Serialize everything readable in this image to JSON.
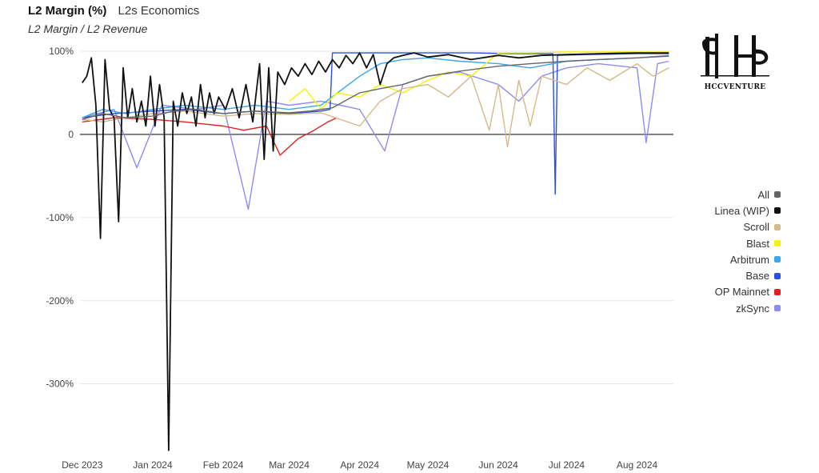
{
  "header": {
    "title": "L2 Margin (%)",
    "section": "L2s Economics",
    "subtitle": "L2 Margin / L2 Revenue"
  },
  "logo": {
    "text": "HCCVENTURE"
  },
  "chart_data": {
    "type": "line",
    "title": "L2 Margin (%)",
    "subtitle": "L2 Margin / L2 Revenue",
    "xlabel": "",
    "ylabel": "",
    "y_unit": "%",
    "ylim": [
      -385,
      100
    ],
    "xlim": [
      "2023-11-30",
      "2024-08-17"
    ],
    "y_ticks": [
      100,
      0,
      -100,
      -200,
      -300
    ],
    "y_tick_labels": [
      "100%",
      "0",
      "-100%",
      "-200%",
      "-300%"
    ],
    "x_ticks": [
      "2023-12-01",
      "2024-01-01",
      "2024-02-01",
      "2024-03-01",
      "2024-04-01",
      "2024-05-01",
      "2024-06-01",
      "2024-07-01",
      "2024-08-01"
    ],
    "x_tick_labels": [
      "Dec 2023",
      "Jan 2024",
      "Feb 2024",
      "Mar 2024",
      "Apr 2024",
      "May 2024",
      "Jun 2024",
      "Jul 2024",
      "Aug 2024"
    ],
    "grid": true,
    "legend_position": "right",
    "series": [
      {
        "name": "All",
        "color": "#666666",
        "points": [
          [
            "2023-12-01",
            18
          ],
          [
            "2023-12-10",
            25
          ],
          [
            "2023-12-20",
            20
          ],
          [
            "2024-01-01",
            22
          ],
          [
            "2024-01-10",
            28
          ],
          [
            "2024-01-20",
            30
          ],
          [
            "2024-02-01",
            25
          ],
          [
            "2024-02-15",
            28
          ],
          [
            "2024-03-01",
            26
          ],
          [
            "2024-03-10",
            28
          ],
          [
            "2024-03-20",
            32
          ],
          [
            "2024-04-01",
            50
          ],
          [
            "2024-04-10",
            55
          ],
          [
            "2024-04-20",
            60
          ],
          [
            "2024-05-01",
            70
          ],
          [
            "2024-05-15",
            76
          ],
          [
            "2024-06-01",
            82
          ],
          [
            "2024-06-15",
            85
          ],
          [
            "2024-07-01",
            88
          ],
          [
            "2024-07-15",
            90
          ],
          [
            "2024-08-01",
            92
          ],
          [
            "2024-08-15",
            94
          ]
        ]
      },
      {
        "name": "Linea (WIP)",
        "color": "#111111",
        "points": [
          [
            "2023-12-01",
            62
          ],
          [
            "2023-12-03",
            70
          ],
          [
            "2023-12-05",
            92
          ],
          [
            "2023-12-07",
            35
          ],
          [
            "2023-12-09",
            -125
          ],
          [
            "2023-12-11",
            90
          ],
          [
            "2023-12-13",
            30
          ],
          [
            "2023-12-15",
            20
          ],
          [
            "2023-12-17",
            -105
          ],
          [
            "2023-12-19",
            80
          ],
          [
            "2023-12-21",
            20
          ],
          [
            "2023-12-23",
            55
          ],
          [
            "2023-12-25",
            15
          ],
          [
            "2023-12-27",
            40
          ],
          [
            "2023-12-29",
            10
          ],
          [
            "2023-12-31",
            70
          ],
          [
            "2024-01-02",
            10
          ],
          [
            "2024-01-04",
            60
          ],
          [
            "2024-01-06",
            20
          ],
          [
            "2024-01-08",
            -380
          ],
          [
            "2024-01-10",
            40
          ],
          [
            "2024-01-12",
            10
          ],
          [
            "2024-01-14",
            50
          ],
          [
            "2024-01-16",
            25
          ],
          [
            "2024-01-18",
            45
          ],
          [
            "2024-01-20",
            10
          ],
          [
            "2024-01-22",
            60
          ],
          [
            "2024-01-24",
            20
          ],
          [
            "2024-01-26",
            50
          ],
          [
            "2024-01-28",
            25
          ],
          [
            "2024-01-30",
            45
          ],
          [
            "2024-02-02",
            30
          ],
          [
            "2024-02-05",
            55
          ],
          [
            "2024-02-08",
            20
          ],
          [
            "2024-02-11",
            60
          ],
          [
            "2024-02-14",
            15
          ],
          [
            "2024-02-17",
            85
          ],
          [
            "2024-02-19",
            -30
          ],
          [
            "2024-02-21",
            80
          ],
          [
            "2024-02-23",
            -20
          ],
          [
            "2024-02-25",
            75
          ],
          [
            "2024-02-28",
            60
          ],
          [
            "2024-03-02",
            80
          ],
          [
            "2024-03-05",
            70
          ],
          [
            "2024-03-08",
            85
          ],
          [
            "2024-03-11",
            72
          ],
          [
            "2024-03-14",
            88
          ],
          [
            "2024-03-17",
            75
          ],
          [
            "2024-03-20",
            90
          ],
          [
            "2024-03-23",
            80
          ],
          [
            "2024-03-26",
            95
          ],
          [
            "2024-03-29",
            85
          ],
          [
            "2024-04-01",
            98
          ],
          [
            "2024-04-04",
            80
          ],
          [
            "2024-04-07",
            96
          ],
          [
            "2024-04-10",
            60
          ],
          [
            "2024-04-13",
            85
          ],
          [
            "2024-04-16",
            92
          ],
          [
            "2024-04-20",
            95
          ],
          [
            "2024-04-25",
            98
          ],
          [
            "2024-05-01",
            93
          ],
          [
            "2024-05-10",
            96
          ],
          [
            "2024-05-20",
            90
          ],
          [
            "2024-06-01",
            95
          ],
          [
            "2024-06-10",
            92
          ],
          [
            "2024-06-20",
            95
          ],
          [
            "2024-07-01",
            96
          ],
          [
            "2024-07-15",
            97
          ],
          [
            "2024-08-01",
            98
          ],
          [
            "2024-08-15",
            98
          ]
        ]
      },
      {
        "name": "Scroll",
        "color": "#d4b98a",
        "points": [
          [
            "2023-12-01",
            18
          ],
          [
            "2023-12-10",
            15
          ],
          [
            "2023-12-20",
            20
          ],
          [
            "2024-01-01",
            25
          ],
          [
            "2024-01-15",
            28
          ],
          [
            "2024-02-01",
            22
          ],
          [
            "2024-02-15",
            25
          ],
          [
            "2024-03-01",
            24
          ],
          [
            "2024-03-15",
            26
          ],
          [
            "2024-04-01",
            10
          ],
          [
            "2024-04-10",
            40
          ],
          [
            "2024-04-20",
            55
          ],
          [
            "2024-05-01",
            60
          ],
          [
            "2024-05-10",
            45
          ],
          [
            "2024-05-20",
            70
          ],
          [
            "2024-05-28",
            5
          ],
          [
            "2024-06-01",
            60
          ],
          [
            "2024-06-05",
            -15
          ],
          [
            "2024-06-10",
            65
          ],
          [
            "2024-06-15",
            10
          ],
          [
            "2024-06-20",
            70
          ],
          [
            "2024-07-01",
            60
          ],
          [
            "2024-07-10",
            80
          ],
          [
            "2024-07-20",
            65
          ],
          [
            "2024-08-01",
            85
          ],
          [
            "2024-08-08",
            70
          ],
          [
            "2024-08-15",
            80
          ]
        ]
      },
      {
        "name": "Blast",
        "color": "#f5f500",
        "points": [
          [
            "2024-03-01",
            40
          ],
          [
            "2024-03-08",
            55
          ],
          [
            "2024-03-15",
            30
          ],
          [
            "2024-03-22",
            50
          ],
          [
            "2024-04-01",
            45
          ],
          [
            "2024-04-10",
            60
          ],
          [
            "2024-04-20",
            50
          ],
          [
            "2024-05-01",
            65
          ],
          [
            "2024-05-10",
            75
          ],
          [
            "2024-05-20",
            70
          ],
          [
            "2024-06-01",
            98
          ],
          [
            "2024-06-15",
            98
          ],
          [
            "2024-07-01",
            99
          ],
          [
            "2024-08-01",
            99
          ],
          [
            "2024-08-15",
            99
          ]
        ]
      },
      {
        "name": "Arbitrum",
        "color": "#3aa7ec",
        "points": [
          [
            "2023-12-01",
            20
          ],
          [
            "2023-12-10",
            30
          ],
          [
            "2023-12-20",
            25
          ],
          [
            "2024-01-01",
            30
          ],
          [
            "2024-01-15",
            35
          ],
          [
            "2024-02-01",
            30
          ],
          [
            "2024-02-15",
            35
          ],
          [
            "2024-03-01",
            30
          ],
          [
            "2024-03-15",
            35
          ],
          [
            "2024-04-01",
            70
          ],
          [
            "2024-04-10",
            85
          ],
          [
            "2024-04-20",
            90
          ],
          [
            "2024-05-01",
            92
          ],
          [
            "2024-05-15",
            88
          ],
          [
            "2024-06-01",
            85
          ],
          [
            "2024-06-15",
            80
          ],
          [
            "2024-07-01",
            88
          ],
          [
            "2024-07-15",
            90
          ],
          [
            "2024-08-01",
            92
          ],
          [
            "2024-08-15",
            95
          ]
        ]
      },
      {
        "name": "Base",
        "color": "#2b4fe0",
        "points": [
          [
            "2023-12-01",
            20
          ],
          [
            "2023-12-15",
            25
          ],
          [
            "2024-01-01",
            28
          ],
          [
            "2024-01-15",
            30
          ],
          [
            "2024-02-01",
            25
          ],
          [
            "2024-02-15",
            28
          ],
          [
            "2024-03-01",
            25
          ],
          [
            "2024-03-15",
            28
          ],
          [
            "2024-03-19",
            30
          ],
          [
            "2024-03-20",
            98
          ],
          [
            "2024-04-10",
            98
          ],
          [
            "2024-05-01",
            98
          ],
          [
            "2024-05-20",
            98
          ],
          [
            "2024-06-10",
            97
          ],
          [
            "2024-06-25",
            97
          ],
          [
            "2024-06-26",
            -72
          ],
          [
            "2024-06-27",
            95
          ],
          [
            "2024-07-10",
            96
          ],
          [
            "2024-08-01",
            97
          ],
          [
            "2024-08-15",
            97
          ]
        ]
      },
      {
        "name": "OP Mainnet",
        "color": "#e02020",
        "points": [
          [
            "2023-12-01",
            15
          ],
          [
            "2023-12-15",
            20
          ],
          [
            "2024-01-01",
            18
          ],
          [
            "2024-01-15",
            15
          ],
          [
            "2024-02-01",
            10
          ],
          [
            "2024-02-10",
            5
          ],
          [
            "2024-02-20",
            10
          ],
          [
            "2024-02-26",
            -25
          ],
          [
            "2024-03-05",
            -5
          ],
          [
            "2024-03-12",
            5
          ],
          [
            "2024-03-18",
            15
          ],
          [
            "2024-03-22",
            20
          ]
        ]
      },
      {
        "name": "zkSync",
        "color": "#8c8cf0",
        "points": [
          [
            "2023-12-01",
            20
          ],
          [
            "2023-12-15",
            30
          ],
          [
            "2023-12-25",
            -40
          ],
          [
            "2024-01-05",
            35
          ],
          [
            "2024-01-20",
            30
          ],
          [
            "2024-02-01",
            35
          ],
          [
            "2024-02-12",
            -90
          ],
          [
            "2024-02-20",
            40
          ],
          [
            "2024-03-01",
            35
          ],
          [
            "2024-03-15",
            40
          ],
          [
            "2024-04-01",
            30
          ],
          [
            "2024-04-12",
            -20
          ],
          [
            "2024-04-20",
            60
          ],
          [
            "2024-05-01",
            70
          ],
          [
            "2024-05-15",
            75
          ],
          [
            "2024-06-01",
            60
          ],
          [
            "2024-06-10",
            40
          ],
          [
            "2024-06-20",
            70
          ],
          [
            "2024-07-01",
            80
          ],
          [
            "2024-07-15",
            85
          ],
          [
            "2024-08-01",
            80
          ],
          [
            "2024-08-05",
            -10
          ],
          [
            "2024-08-10",
            85
          ],
          [
            "2024-08-15",
            88
          ]
        ]
      }
    ]
  }
}
